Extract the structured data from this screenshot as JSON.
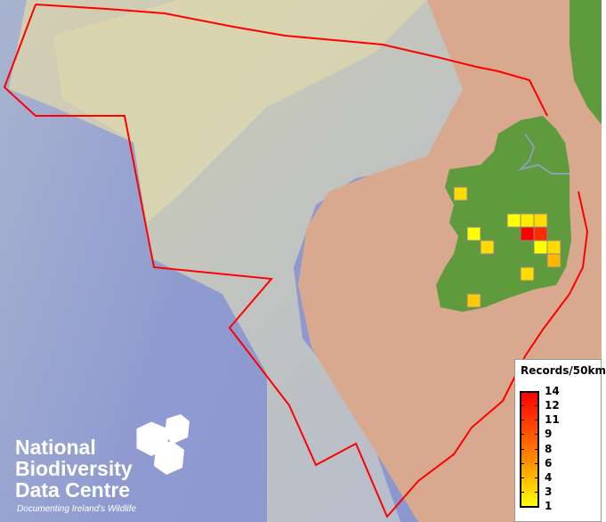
{
  "map": {
    "boundary_color": "#ff0000",
    "land_color": "#5f9a3d",
    "records": [
      {
        "col": 0,
        "row": 0,
        "value": 3
      },
      {
        "col": 4,
        "row": 2,
        "value": 1
      },
      {
        "col": 5,
        "row": 2,
        "value": 2
      },
      {
        "col": 6,
        "row": 2,
        "value": 3
      },
      {
        "col": 1,
        "row": 3,
        "value": 1
      },
      {
        "col": 5,
        "row": 3,
        "value": 14
      },
      {
        "col": 6,
        "row": 3,
        "value": 12
      },
      {
        "col": 2,
        "row": 4,
        "value": 3
      },
      {
        "col": 6,
        "row": 4,
        "value": 1
      },
      {
        "col": 7,
        "row": 4,
        "value": 3
      },
      {
        "col": 7,
        "row": 5,
        "value": 5
      },
      {
        "col": 5,
        "row": 6,
        "value": 3
      },
      {
        "col": 1,
        "row": 8,
        "value": 4
      }
    ]
  },
  "legend": {
    "title": "Records/50km",
    "labels": [
      "14",
      "12",
      "11",
      "9",
      "8",
      "6",
      "4",
      "3",
      "1"
    ],
    "min": 1,
    "max": 14,
    "colors": {
      "low": "#ffff00",
      "mid": "#ff8000",
      "high": "#ff0000"
    }
  },
  "logo": {
    "line1": "National",
    "line2": "Biodiversity",
    "line3": "Data Centre",
    "tagline": "Documenting Ireland's Wildlife"
  }
}
